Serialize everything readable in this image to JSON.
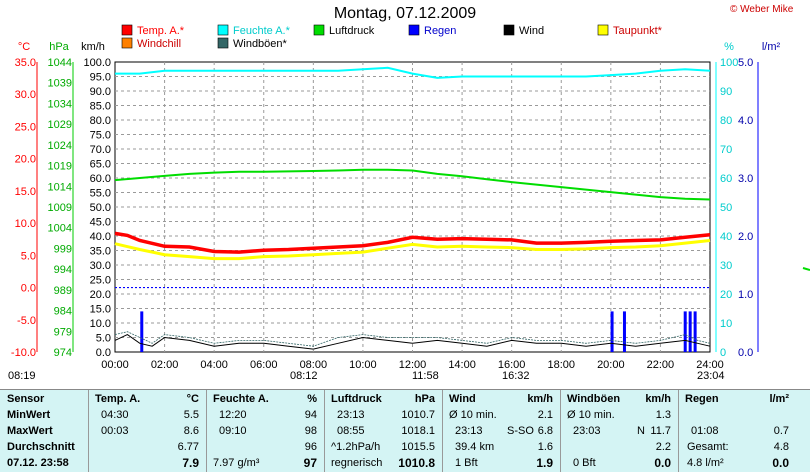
{
  "title": "Montag, 07.12.2009",
  "copyright": "© Weber Mike",
  "colors": {
    "temp": "#ff0000",
    "humidity": "#00ffff",
    "pressure": "#00dd00",
    "rain": "#0000ff",
    "wind": "#000000",
    "dewpoint": "#ffff00",
    "windchill": "#ff8000",
    "gust": "#336666"
  },
  "chart_data": {
    "type": "line",
    "title": "Montag, 07.12.2009",
    "x_ticks": [
      "00:00",
      "02:00",
      "04:00",
      "06:00",
      "08:00",
      "10:00",
      "12:00",
      "14:00",
      "16:00",
      "18:00",
      "20:00",
      "22:00",
      "24:00"
    ],
    "axes": {
      "celsius": {
        "unit": "°C",
        "ticks": [
          "35.0",
          "30.0",
          "25.0",
          "20.0",
          "15.0",
          "10.0",
          "5.0",
          "0.0",
          "-5.0",
          "-10.0"
        ],
        "range": [
          -10,
          35
        ]
      },
      "hpa": {
        "unit": "hPa",
        "ticks": [
          "1044",
          "1039",
          "1034",
          "1029",
          "1024",
          "1019",
          "1014",
          "1009",
          "1004",
          "999",
          "994",
          "989",
          "984",
          "979",
          "974"
        ],
        "range": [
          974,
          1044
        ]
      },
      "kmh": {
        "unit": "km/h",
        "ticks": [
          "100.0",
          "95.0",
          "90.0",
          "85.0",
          "80.0",
          "75.0",
          "70.0",
          "65.0",
          "60.0",
          "55.0",
          "50.0",
          "45.0",
          "40.0",
          "35.0",
          "30.0",
          "25.0",
          "20.0",
          "15.0",
          "10.0",
          "5.0",
          "0.0"
        ],
        "range": [
          0,
          100
        ]
      },
      "percent": {
        "unit": "%",
        "ticks": [
          "100",
          "90",
          "80",
          "70",
          "60",
          "50",
          "40",
          "30",
          "20",
          "10",
          "0"
        ],
        "range": [
          0,
          100
        ]
      },
      "rain": {
        "unit": "l/m²",
        "ticks": [
          "5.0",
          "4.0",
          "3.0",
          "2.0",
          "1.0",
          "0.0"
        ],
        "range": [
          0,
          5
        ]
      }
    },
    "legend": [
      {
        "label": "Temp. A.*",
        "color": "#ff0000",
        "text_color": "#ff0000"
      },
      {
        "label": "Feuchte A.*",
        "color": "#00ffff",
        "text_color": "#00cccc"
      },
      {
        "label": "Luftdruck",
        "color": "#00dd00",
        "text_color": "#000000"
      },
      {
        "label": "Regen",
        "color": "#0000ff",
        "text_color": "#0000cc"
      },
      {
        "label": "Wind",
        "color": "#000000",
        "text_color": "#000000"
      },
      {
        "label": "Taupunkt*",
        "color": "#ffff00",
        "text_color": "#cc0000"
      },
      {
        "label": "Windchill",
        "color": "#ff8000",
        "text_color": "#cc0000"
      },
      {
        "label": "Windböen*",
        "color": "#336666",
        "text_color": "#000000"
      }
    ],
    "series": [
      {
        "name": "Temp. A.*",
        "axis": "celsius",
        "x": [
          0,
          0.5,
          1,
          2,
          3,
          4,
          5,
          6,
          7,
          8,
          9,
          10,
          11,
          12,
          13,
          14,
          15,
          16,
          17,
          18,
          19,
          20,
          21,
          22,
          23,
          24
        ],
        "y": [
          8.4,
          8.1,
          7.3,
          6.4,
          6.3,
          5.6,
          5.5,
          5.8,
          5.9,
          6.1,
          6.3,
          6.5,
          7.0,
          7.8,
          7.5,
          7.6,
          7.5,
          7.4,
          6.9,
          6.9,
          7.0,
          7.2,
          7.3,
          7.4,
          7.8,
          8.2
        ]
      },
      {
        "name": "Taupunkt*",
        "axis": "celsius",
        "x": [
          0,
          1,
          2,
          3,
          4,
          5,
          6,
          7,
          8,
          9,
          10,
          11,
          12,
          13,
          14,
          15,
          16,
          17,
          18,
          19,
          20,
          21,
          22,
          23,
          24
        ],
        "y": [
          6.8,
          5.9,
          5.1,
          4.8,
          4.5,
          4.5,
          4.8,
          4.9,
          5.1,
          5.3,
          5.5,
          6.1,
          6.7,
          6.3,
          6.4,
          6.3,
          6.2,
          5.9,
          5.9,
          6.0,
          6.2,
          6.3,
          6.5,
          6.9,
          7.3
        ]
      },
      {
        "name": "Feuchte A.*",
        "axis": "percent",
        "x": [
          0,
          1,
          2,
          3,
          4,
          5,
          6,
          7,
          8,
          9,
          10,
          11,
          12,
          13,
          14,
          15,
          16,
          17,
          18,
          19,
          20,
          21,
          22,
          23,
          24
        ],
        "y": [
          96,
          96,
          97,
          97,
          97,
          97,
          97,
          97,
          97,
          97,
          97.5,
          98,
          96,
          94.5,
          95,
          95,
          95,
          95,
          95,
          95,
          95.5,
          96,
          97,
          97.5,
          97
        ]
      },
      {
        "name": "Luftdruck",
        "axis": "hpa",
        "x": [
          0,
          1,
          2,
          3,
          4,
          5,
          6,
          7,
          8,
          9,
          10,
          11,
          12,
          13,
          14,
          15,
          16,
          17,
          18,
          19,
          20,
          21,
          22,
          23,
          24
        ],
        "y": [
          1015.5,
          1016.0,
          1016.5,
          1017.0,
          1017.3,
          1017.5,
          1017.5,
          1017.6,
          1017.7,
          1017.8,
          1018.0,
          1018.0,
          1017.8,
          1017.0,
          1016.4,
          1015.7,
          1015.0,
          1014.4,
          1013.8,
          1013.2,
          1012.6,
          1012.0,
          1011.4,
          1011.0,
          1010.8
        ]
      },
      {
        "name": "Wind",
        "axis": "kmh",
        "x": [
          0,
          0.5,
          1,
          1.5,
          2,
          3,
          4,
          5,
          6,
          7,
          8,
          9,
          10,
          11,
          12,
          13,
          14,
          15,
          16,
          17,
          18,
          19,
          20,
          21,
          22,
          23,
          23.5,
          24
        ],
        "y": [
          4,
          6,
          3,
          2,
          5,
          4,
          2,
          3,
          3,
          2,
          1,
          3,
          5,
          4,
          3,
          4,
          3,
          2,
          4,
          3,
          3,
          2,
          3,
          2,
          3,
          4,
          3,
          2
        ]
      },
      {
        "name": "Windböen*",
        "axis": "kmh",
        "x": [
          0,
          0.5,
          1,
          1.5,
          2,
          3,
          4,
          5,
          6,
          7,
          8,
          9,
          10,
          11,
          12,
          13,
          14,
          15,
          16,
          17,
          18,
          19,
          20,
          21,
          22,
          23,
          23.5,
          24
        ],
        "y": [
          6,
          7,
          5,
          3,
          6,
          5,
          3,
          4,
          4,
          3,
          2,
          5,
          6,
          5,
          5,
          5,
          4,
          3,
          5,
          4,
          4,
          3,
          4,
          3,
          4,
          6,
          4,
          3
        ]
      },
      {
        "name": "Regen",
        "axis": "rain",
        "type": "bar",
        "x": [
          1.08,
          20.05,
          20.55,
          23.0,
          23.2,
          23.4
        ],
        "y": [
          0.7,
          0.7,
          0.7,
          0.7,
          0.7,
          0.7
        ]
      }
    ],
    "sun_markers": [
      {
        "time": "08:19",
        "label": "08:19"
      },
      {
        "time": "08:12",
        "label": "08:12"
      },
      {
        "time": "11:58",
        "label": "11:58"
      },
      {
        "time": "16:32",
        "label": "16:32"
      },
      {
        "time": "23:04",
        "label": "23:04"
      }
    ],
    "grid": true
  },
  "table": {
    "sensor": {
      "header": "Sensor",
      "rows": [
        "MinWert",
        "MaxWert",
        "Durchschnitt"
      ],
      "footer": "07.12. 23:58"
    },
    "temp": {
      "header": "Temp. A.",
      "unit": "°C",
      "rows": [
        [
          "04:30",
          "5.5"
        ],
        [
          "00:03",
          "8.6"
        ],
        [
          "",
          "6.77"
        ]
      ],
      "footer": "7.9"
    },
    "humidity": {
      "header": "Feuchte A.",
      "unit": "%",
      "rows": [
        [
          "12:20",
          "94"
        ],
        [
          "09:10",
          "98"
        ],
        [
          "",
          "96"
        ]
      ],
      "footer_left": "7.97 g/m³",
      "footer": "97"
    },
    "pressure": {
      "header": "Luftdruck",
      "unit": "hPa",
      "rows": [
        [
          "23:13",
          "1010.7"
        ],
        [
          "08:55",
          "1018.1"
        ],
        [
          "^1.2hPa/h",
          "1015.5"
        ]
      ],
      "footer_left": "regnerisch",
      "footer": "1010.8"
    },
    "wind": {
      "header": "Wind",
      "unit": "km/h",
      "rows": [
        [
          "Ø 10 min.",
          "",
          "2.1"
        ],
        [
          "23:13",
          "S-SO",
          "6.8"
        ],
        [
          "39.4 km",
          "",
          "1.6"
        ]
      ],
      "footer_left": "1 Bft",
      "footer": "1.9"
    },
    "gust": {
      "header": "Windböen",
      "unit": "km/h",
      "rows": [
        [
          "Ø 10 min.",
          "",
          "1.3"
        ],
        [
          "23:03",
          "N",
          "11.7"
        ],
        [
          "",
          "",
          "2.2"
        ]
      ],
      "footer_left": "0 Bft",
      "footer": "0.0"
    },
    "rain": {
      "header": "Regen",
      "unit": "l/m²",
      "rows": [
        [
          "",
          ""
        ],
        [
          "01:08",
          "0.7"
        ],
        [
          "Gesamt:",
          "4.8"
        ]
      ],
      "footer_left": "4.8 l/m²",
      "footer": "0.0"
    }
  }
}
